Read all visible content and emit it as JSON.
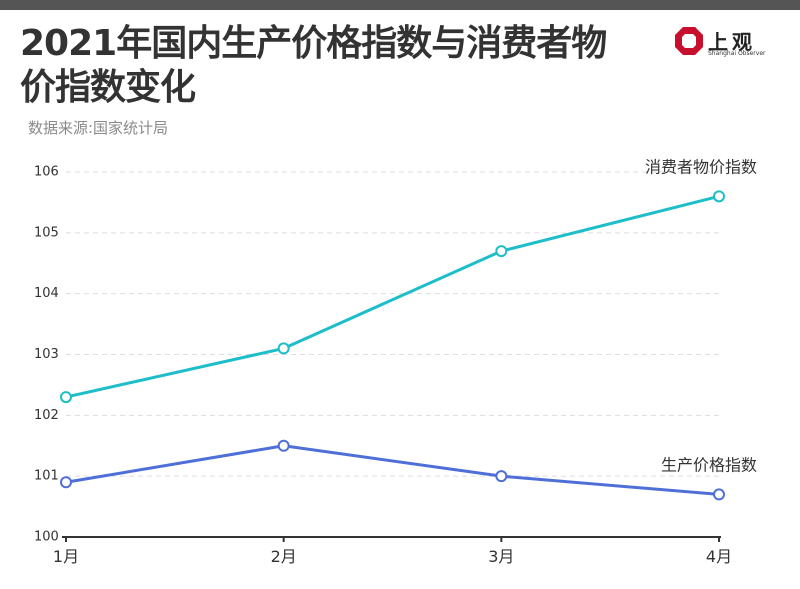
{
  "title": "2021年国内生产价格指数与消费者物价指数变化",
  "subtitle": "数据来源:国家统计局",
  "logo": {
    "cn": "上观",
    "en": "Shanghai Observer"
  },
  "colors": {
    "cpi": "#1dbec9",
    "ppi": "#4f6fd8",
    "grid": "#dddddd",
    "bar": "#555555",
    "logo": "#c8102e"
  },
  "chart_data": {
    "type": "line",
    "categories": [
      "1月",
      "2月",
      "3月",
      "4月"
    ],
    "ylim": [
      100,
      106
    ],
    "yticks": [
      "100",
      "101",
      "102",
      "103",
      "104",
      "105",
      "106"
    ],
    "grid": "horizontal dashed",
    "series": [
      {
        "name": "消费者物价指数",
        "values": [
          102.3,
          103.1,
          104.7,
          105.6
        ]
      },
      {
        "name": "生产价格指数",
        "values": [
          100.9,
          101.5,
          101.0,
          100.7
        ]
      }
    ]
  }
}
